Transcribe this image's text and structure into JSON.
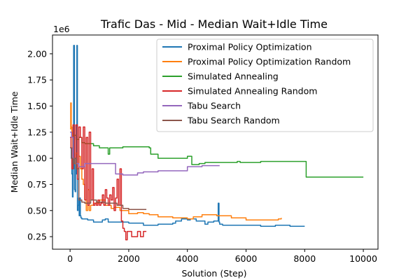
{
  "chart_data": {
    "type": "line",
    "title": "Trafic Das - Mid - Median Wait+Idle Time",
    "xlabel": "Solution (Step)",
    "ylabel": "Median Wait+Idle Time",
    "y_multiplier_label": "1e6",
    "xlim": [
      -600,
      10500
    ],
    "ylim": [
      0.13,
      2.18
    ],
    "xticks": [
      0,
      2000,
      4000,
      6000,
      8000,
      10000
    ],
    "xtick_labels": [
      "0",
      "2000",
      "4000",
      "6000",
      "8000",
      "10000"
    ],
    "yticks": [
      0.25,
      0.5,
      0.75,
      1.0,
      1.25,
      1.5,
      1.75,
      2.0
    ],
    "ytick_labels": [
      "0.25",
      "0.50",
      "0.75",
      "1.00",
      "1.25",
      "1.50",
      "1.75",
      "2.00"
    ],
    "grid": false,
    "legend_position": "top-right",
    "series": [
      {
        "name": "Proximal Policy Optimization",
        "color": "#1f77b4",
        "x": [
          0,
          40,
          60,
          80,
          100,
          120,
          130,
          150,
          170,
          190,
          210,
          230,
          250,
          270,
          290,
          310,
          330,
          350,
          370,
          400,
          450,
          500,
          600,
          800,
          1000,
          1100,
          1200,
          1300,
          1500,
          2000,
          2500,
          2800,
          3000,
          3300,
          3500,
          3600,
          3800,
          4000,
          4100,
          4300,
          4500,
          4600,
          4700,
          4900,
          5000,
          5050,
          5080,
          5100,
          5200,
          5500,
          6000,
          6500,
          7000,
          7500,
          8000
        ],
        "y": [
          1.1,
          1.0,
          0.85,
          0.63,
          0.9,
          2.08,
          2.08,
          0.7,
          0.68,
          1.0,
          0.85,
          2.08,
          0.5,
          0.55,
          0.62,
          0.45,
          0.62,
          0.45,
          0.43,
          0.42,
          0.42,
          0.42,
          0.41,
          0.39,
          0.39,
          0.41,
          0.42,
          0.39,
          0.39,
          0.38,
          0.36,
          0.36,
          0.37,
          0.37,
          0.38,
          0.4,
          0.42,
          0.41,
          0.42,
          0.4,
          0.4,
          0.37,
          0.39,
          0.4,
          0.4,
          0.57,
          0.39,
          0.37,
          0.36,
          0.36,
          0.36,
          0.35,
          0.36,
          0.35,
          0.35
        ]
      },
      {
        "name": "Proximal Policy Optimization Random",
        "color": "#ff7f0e",
        "x": [
          0,
          20,
          40,
          60,
          80,
          100,
          150,
          200,
          250,
          300,
          350,
          400,
          450,
          500,
          550,
          600,
          650,
          700,
          800,
          1000,
          1200,
          1400,
          1500,
          1700,
          2000,
          2300,
          2500,
          2700,
          3000,
          3500,
          4000,
          4200,
          4500,
          5000,
          5500,
          6000,
          6500,
          7000,
          7100,
          7200
        ],
        "y": [
          1.28,
          1.53,
          1.3,
          1.25,
          1.1,
          1.0,
          0.95,
          1.05,
          0.9,
          1.02,
          0.9,
          0.8,
          0.75,
          0.6,
          0.5,
          0.7,
          0.5,
          0.55,
          0.57,
          0.6,
          0.55,
          0.52,
          0.53,
          0.5,
          0.47,
          0.48,
          0.47,
          0.46,
          0.44,
          0.43,
          0.42,
          0.44,
          0.46,
          0.45,
          0.43,
          0.41,
          0.41,
          0.41,
          0.42,
          0.43
        ]
      },
      {
        "name": "Simulated Annealing",
        "color": "#2ca02c",
        "x": [
          0,
          100,
          200,
          300,
          400,
          500,
          600,
          800,
          1000,
          1200,
          1300,
          1350,
          1400,
          1600,
          1800,
          2000,
          2300,
          2700,
          2750,
          3000,
          3500,
          3800,
          4000,
          4100,
          4150,
          4400,
          4600,
          5000,
          5500,
          5700,
          5800,
          6000,
          6500,
          7000,
          7500,
          8000,
          8050,
          8100,
          9000,
          10000
        ],
        "y": [
          1.2,
          1.22,
          1.18,
          1.2,
          1.15,
          1.14,
          1.14,
          1.12,
          1.1,
          1.1,
          1.04,
          1.1,
          1.1,
          1.1,
          1.11,
          1.11,
          1.11,
          1.1,
          1.04,
          1.0,
          1.0,
          1.0,
          1.02,
          1.02,
          0.94,
          0.95,
          0.96,
          0.96,
          0.96,
          0.97,
          0.96,
          0.96,
          0.97,
          0.97,
          0.97,
          0.97,
          0.82,
          0.82,
          0.82,
          0.82
        ]
      },
      {
        "name": "Simulated Annealing Random",
        "color": "#d62728",
        "x": [
          0,
          30,
          60,
          100,
          150,
          200,
          250,
          300,
          350,
          400,
          450,
          500,
          550,
          600,
          650,
          700,
          750,
          800,
          850,
          900,
          950,
          1000,
          1050,
          1100,
          1150,
          1200,
          1250,
          1300,
          1350,
          1400,
          1450,
          1500,
          1550,
          1600,
          1650,
          1700,
          1750,
          1800,
          1850,
          1900,
          1950,
          2000,
          2100,
          2200,
          2300,
          2400,
          2500,
          2600
        ],
        "y": [
          1.2,
          1.1,
          0.9,
          1.32,
          1.0,
          1.32,
          0.8,
          1.3,
          1.2,
          0.9,
          1.3,
          0.6,
          1.2,
          0.55,
          1.25,
          0.6,
          0.9,
          0.55,
          0.57,
          0.55,
          0.6,
          0.55,
          0.57,
          0.65,
          0.55,
          0.7,
          0.62,
          0.55,
          0.65,
          0.6,
          0.72,
          0.5,
          0.62,
          0.8,
          0.55,
          0.9,
          0.4,
          0.33,
          0.3,
          0.22,
          0.3,
          0.3,
          0.25,
          0.25,
          0.3,
          0.25,
          0.3,
          0.3
        ]
      },
      {
        "name": "Tabu Search",
        "color": "#9467bd",
        "x": [
          0,
          50,
          100,
          200,
          300,
          500,
          700,
          1000,
          1300,
          1500,
          1550,
          1800,
          2000,
          2300,
          2500,
          2800,
          3000,
          3200,
          3500,
          4000,
          4500,
          5000,
          5100
        ],
        "y": [
          1.25,
          1.2,
          1.0,
          0.95,
          0.92,
          0.95,
          0.95,
          0.95,
          0.95,
          0.95,
          0.85,
          0.84,
          0.84,
          0.86,
          0.87,
          0.87,
          0.88,
          0.88,
          0.88,
          0.92,
          0.93,
          0.93,
          0.93
        ]
      },
      {
        "name": "Tabu Search Random",
        "color": "#8c564b",
        "x": [
          0,
          50,
          100,
          150,
          200,
          300,
          400,
          500,
          700,
          900,
          1000,
          1200,
          1400,
          1600,
          1800,
          2000,
          2200,
          2400,
          2600
        ],
        "y": [
          1.1,
          1.0,
          0.95,
          1.0,
          0.9,
          0.6,
          0.58,
          0.57,
          0.6,
          0.58,
          0.58,
          0.57,
          0.57,
          0.55,
          0.52,
          0.51,
          0.51,
          0.51,
          0.51
        ]
      }
    ]
  }
}
